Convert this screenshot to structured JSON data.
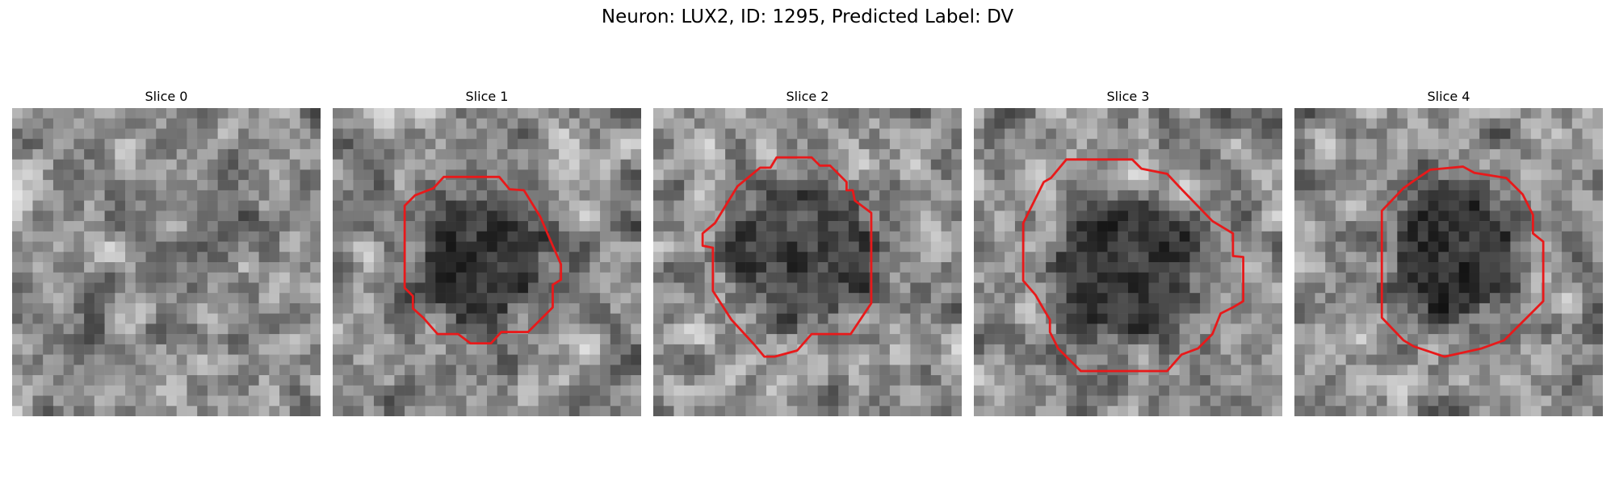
{
  "figure": {
    "title": "Neuron: LUX2, ID: 1295, Predicted Label: DV",
    "colors": {
      "contour": "#e8191a",
      "background": "#ffffff"
    }
  },
  "panels": [
    {
      "title": "Slice 0"
    },
    {
      "title": "Slice 1"
    },
    {
      "title": "Slice 2"
    },
    {
      "title": "Slice 3"
    },
    {
      "title": "Slice 4"
    }
  ]
}
